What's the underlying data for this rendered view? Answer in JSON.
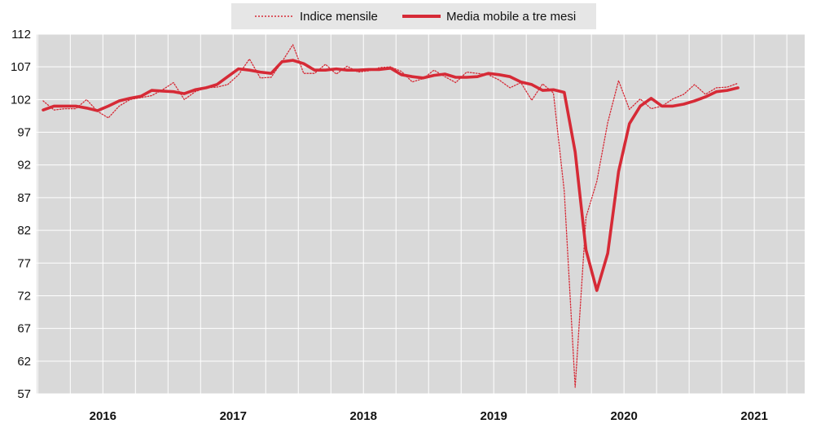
{
  "chart_data": {
    "type": "line",
    "title": "",
    "xlabel": "",
    "ylabel": "",
    "ylim": [
      57,
      112
    ],
    "yticks": [
      57,
      62,
      67,
      72,
      77,
      82,
      87,
      92,
      97,
      102,
      107,
      112
    ],
    "ytick_labels": [
      "57",
      "62",
      "67",
      "72",
      "77",
      "82",
      "87",
      "92",
      "97",
      "102",
      "107",
      "112"
    ],
    "year_labels": [
      "2016",
      "2017",
      "2018",
      "2019",
      "2020",
      "2021"
    ],
    "grid": true,
    "legend_position": "top",
    "colors": {
      "accent": "#d62a36",
      "plot_background": "#d9d9d9",
      "legend_background": "#e6e6e6",
      "grid": "#ffffff"
    },
    "x": [
      "2016-01",
      "2016-02",
      "2016-03",
      "2016-04",
      "2016-05",
      "2016-06",
      "2016-07",
      "2016-08",
      "2016-09",
      "2016-10",
      "2016-11",
      "2016-12",
      "2017-01",
      "2017-02",
      "2017-03",
      "2017-04",
      "2017-05",
      "2017-06",
      "2017-07",
      "2017-08",
      "2017-09",
      "2017-10",
      "2017-11",
      "2017-12",
      "2018-01",
      "2018-02",
      "2018-03",
      "2018-04",
      "2018-05",
      "2018-06",
      "2018-07",
      "2018-08",
      "2018-09",
      "2018-10",
      "2018-11",
      "2018-12",
      "2019-01",
      "2019-02",
      "2019-03",
      "2019-04",
      "2019-05",
      "2019-06",
      "2019-07",
      "2019-08",
      "2019-09",
      "2019-10",
      "2019-11",
      "2019-12",
      "2020-01",
      "2020-02",
      "2020-03",
      "2020-04",
      "2020-05",
      "2020-06",
      "2020-07",
      "2020-08",
      "2020-09",
      "2020-10",
      "2020-11",
      "2020-12",
      "2021-01",
      "2021-02",
      "2021-03",
      "2021-04",
      "2021-05"
    ],
    "series": [
      {
        "name": "Indice mensile",
        "style": "dotted",
        "values": [
          101.8,
          100.4,
          100.6,
          100.6,
          102.0,
          100.2,
          99.2,
          101.0,
          102.0,
          102.3,
          102.6,
          103.5,
          104.6,
          102.0,
          103.2,
          103.8,
          103.9,
          104.3,
          105.8,
          108.2,
          105.3,
          105.4,
          107.8,
          110.4,
          106.0,
          106.0,
          107.4,
          105.9,
          107.1,
          106.2,
          106.4,
          106.9,
          107.0,
          106.3,
          104.7,
          105.2,
          106.5,
          105.5,
          104.6,
          106.2,
          106.0,
          105.8,
          105.0,
          103.8,
          104.6,
          101.9,
          104.4,
          103.0,
          88.0,
          58.0,
          84.0,
          89.5,
          98.5,
          104.9,
          100.5,
          102.1,
          100.6,
          101.0,
          102.1,
          102.8,
          104.3,
          102.8,
          103.8,
          103.9,
          104.5
        ]
      },
      {
        "name": "Media mobile a tre mesi",
        "style": "solid",
        "values": [
          100.4,
          101.0,
          101.0,
          101.0,
          100.7,
          100.3,
          101.0,
          101.8,
          102.2,
          102.5,
          103.4,
          103.3,
          103.2,
          102.9,
          103.5,
          103.8,
          104.3,
          105.5,
          106.7,
          106.5,
          106.2,
          106.0,
          107.8,
          108.0,
          107.5,
          106.5,
          106.5,
          106.7,
          106.5,
          106.5,
          106.6,
          106.6,
          106.8,
          105.8,
          105.5,
          105.3,
          105.7,
          105.9,
          105.4,
          105.4,
          105.5,
          106.0,
          105.8,
          105.5,
          104.7,
          104.3,
          103.4,
          103.5,
          103.1,
          94.0,
          79.0,
          72.8,
          78.5,
          91.0,
          98.3,
          101.0,
          102.2,
          101.0,
          101.0,
          101.3,
          101.8,
          102.4,
          103.2,
          103.4,
          103.8
        ]
      }
    ]
  }
}
